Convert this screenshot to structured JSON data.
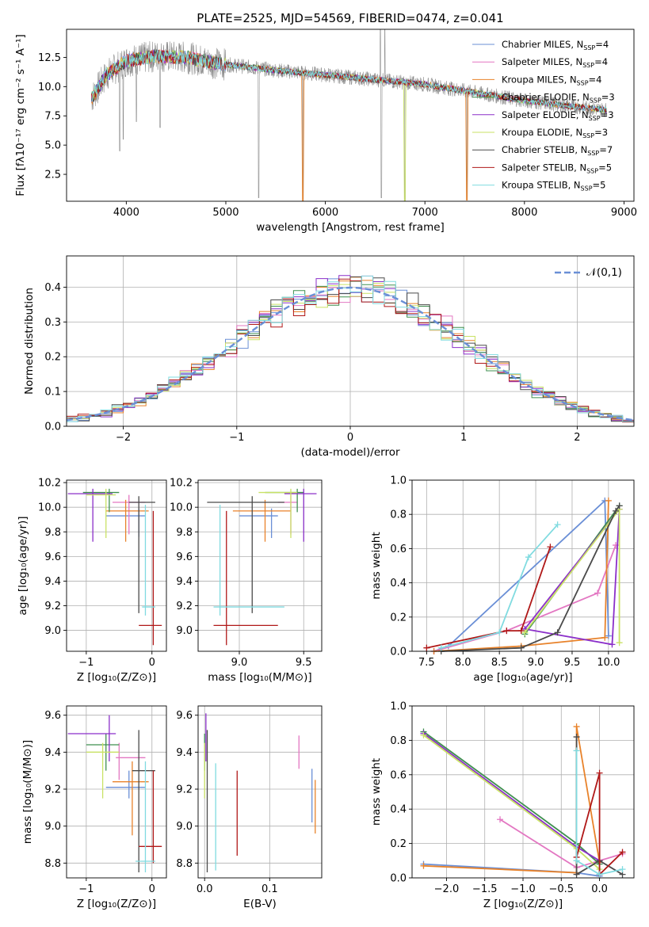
{
  "colors": {
    "Chabrier MILES": "#6a8fd6",
    "Salpeter MILES": "#e377c2",
    "Kroupa MILES": "#e8822a",
    "Chabrier ELODIE": "#3f8f4f",
    "Salpeter ELODIE": "#8b2fc9",
    "Kroupa ELODIE": "#c9e265",
    "Chabrier STELIB": "#4a4a4a",
    "Salpeter STELIB": "#b01818",
    "Kroupa STELIB": "#80dbe0",
    "data": "#8c8c8c",
    "normal": "#6a8fd6"
  },
  "chart_data": [
    {
      "type": "line",
      "panel": "spectrum",
      "title": "PLATE=2525, MJD=54569, FIBERID=0474, z=0.041",
      "xlabel": "wavelength [Angstrom, rest frame]",
      "ylabel": "Flux [fλ10⁻¹⁷ erg cm⁻² s⁻¹ A⁻¹]",
      "xlim": [
        3400,
        9100
      ],
      "ylim": [
        0.2,
        14.9
      ],
      "xticks": [
        "4000",
        "5000",
        "6000",
        "7000",
        "8000",
        "9000"
      ],
      "yticks": [
        "2.5",
        "5.0",
        "7.5",
        "10.0",
        "12.5"
      ],
      "legend_position": "top-right",
      "legend": [
        {
          "name": "Chabrier MILES",
          "nssp": "4"
        },
        {
          "name": "Salpeter MILES",
          "nssp": "4"
        },
        {
          "name": "Kroupa MILES",
          "nssp": "4"
        },
        {
          "name": "Chabrier ELODIE",
          "nssp": "3"
        },
        {
          "name": "Salpeter ELODIE",
          "nssp": "3"
        },
        {
          "name": "Kroupa ELODIE",
          "nssp": "3"
        },
        {
          "name": "Chabrier STELIB",
          "nssp": "7"
        },
        {
          "name": "Salpeter STELIB",
          "nssp": "5"
        },
        {
          "name": "Kroupa STELIB",
          "nssp": "5"
        }
      ],
      "continuum": [
        [
          3650,
          9.0
        ],
        [
          3800,
          11.0
        ],
        [
          4000,
          12.2
        ],
        [
          4300,
          12.6
        ],
        [
          4600,
          12.5
        ],
        [
          4900,
          12.0
        ],
        [
          5500,
          11.4
        ],
        [
          6000,
          11.0
        ],
        [
          6500,
          10.6
        ],
        [
          7000,
          10.2
        ],
        [
          7500,
          9.5
        ],
        [
          8000,
          8.8
        ],
        [
          8500,
          8.3
        ],
        [
          8830,
          8.0
        ]
      ],
      "absorption": [
        {
          "x": 3935,
          "y": 4.5
        },
        {
          "x": 3970,
          "y": 5.5
        },
        {
          "x": 4102,
          "y": 7.0
        },
        {
          "x": 4340,
          "y": 6.5
        },
        {
          "x": 5330,
          "y": 0.5
        },
        {
          "x": 5775,
          "y": 0.2
        },
        {
          "x": 6563,
          "y": 0.5
        },
        {
          "x": 6800,
          "y": 0.2
        },
        {
          "x": 7420,
          "y": 0.3
        }
      ],
      "emission": [
        {
          "x": 6553,
          "y": 14.9
        },
        {
          "x": 6598,
          "y": 14.9
        }
      ]
    },
    {
      "type": "bar",
      "panel": "residual histogram",
      "xlabel": "(data-model)/error",
      "ylabel": "Normed distribution",
      "xlim": [
        -2.5,
        2.5
      ],
      "ylim": [
        0,
        0.49
      ],
      "xticks": [
        "−2",
        "−1",
        "0",
        "1",
        "2"
      ],
      "yticks": [
        "0.0",
        "0.1",
        "0.2",
        "0.3",
        "0.4"
      ],
      "grid": true,
      "legend_position": "top-right",
      "series": [
        {
          "name": "𝒩(0,1)",
          "type": "line",
          "mean": 0,
          "sigma": 1
        }
      ],
      "bin_width": 0.1
    },
    {
      "type": "scatter",
      "panel": "age vs Z",
      "xlabel": "Z [log₁₀(Z/Z⊙)]",
      "ylabel": "age  [log₁₀(age/yr)]",
      "xlim": [
        -1.3,
        0.22
      ],
      "ylim": [
        8.83,
        10.22
      ],
      "xticks": [
        "−1",
        "0"
      ],
      "yticks": [
        "9.0",
        "9.2",
        "9.4",
        "9.6",
        "9.8",
        "10.0",
        "10.2"
      ],
      "grid": true,
      "points": [
        {
          "model": "Chabrier MILES",
          "x": -0.2,
          "xlo": -0.7,
          "xhi": -0.1,
          "y": 9.93,
          "ylo": 9.76,
          "yhi": 9.99
        },
        {
          "model": "Salpeter MILES",
          "x": -0.35,
          "xlo": -0.6,
          "xhi": -0.1,
          "y": 10.04,
          "ylo": 9.78,
          "yhi": 10.1
        },
        {
          "model": "Kroupa MILES",
          "x": -0.4,
          "xlo": -0.7,
          "xhi": -0.05,
          "y": 9.97,
          "ylo": 9.72,
          "yhi": 10.06
        },
        {
          "model": "Chabrier ELODIE",
          "x": -0.65,
          "xlo": -1.05,
          "xhi": -0.5,
          "y": 10.12,
          "ylo": 9.96,
          "yhi": 10.15
        },
        {
          "model": "Salpeter ELODIE",
          "x": -0.9,
          "xlo": -1.28,
          "xhi": -0.6,
          "y": 10.11,
          "ylo": 9.72,
          "yhi": 10.15
        },
        {
          "model": "Kroupa ELODIE",
          "x": -0.7,
          "xlo": -1.0,
          "xhi": -0.55,
          "y": 10.1,
          "ylo": 9.75,
          "yhi": 10.15
        },
        {
          "model": "Chabrier STELIB",
          "x": -0.2,
          "xlo": -0.35,
          "xhi": 0.05,
          "y": 10.04,
          "ylo": 9.14,
          "yhi": 10.09
        },
        {
          "model": "Salpeter STELIB",
          "x": 0.02,
          "xlo": -0.2,
          "xhi": 0.15,
          "y": 9.04,
          "ylo": 8.88,
          "yhi": 9.97
        },
        {
          "model": "Kroupa STELIB",
          "x": -0.1,
          "xlo": -0.15,
          "xhi": 0.05,
          "y": 9.19,
          "ylo": 9.12,
          "yhi": 10.02
        }
      ]
    },
    {
      "type": "scatter",
      "panel": "age vs mass",
      "xlabel": "mass [log₁₀(M/M⊙)]",
      "ylabel": "",
      "xlim": [
        8.68,
        9.64
      ],
      "ylim": [
        8.83,
        10.22
      ],
      "xticks": [
        "9.0",
        "9.5"
      ],
      "yticks": [
        "9.0",
        "9.2",
        "9.4",
        "9.6",
        "9.8",
        "10.0",
        "10.2"
      ],
      "grid": true,
      "points": [
        {
          "model": "Chabrier MILES",
          "x": 9.25,
          "xlo": 9.0,
          "xhi": 9.3,
          "y": 9.93,
          "ylo": 9.75,
          "yhi": 9.99
        },
        {
          "model": "Salpeter MILES",
          "x": 9.4,
          "xlo": 9.3,
          "xhi": 9.45,
          "y": 10.04,
          "ylo": 9.78,
          "yhi": 10.1
        },
        {
          "model": "Kroupa MILES",
          "x": 9.2,
          "xlo": 8.95,
          "xhi": 9.4,
          "y": 9.97,
          "ylo": 9.72,
          "yhi": 10.06
        },
        {
          "model": "Chabrier ELODIE",
          "x": 9.45,
          "xlo": 9.2,
          "xhi": 9.5,
          "y": 10.12,
          "ylo": 9.96,
          "yhi": 10.15
        },
        {
          "model": "Salpeter ELODIE",
          "x": 9.5,
          "xlo": 9.35,
          "xhi": 9.6,
          "y": 10.11,
          "ylo": 9.72,
          "yhi": 10.15
        },
        {
          "model": "Kroupa ELODIE",
          "x": 9.4,
          "xlo": 9.15,
          "xhi": 9.45,
          "y": 10.12,
          "ylo": 9.75,
          "yhi": 10.15
        },
        {
          "model": "Chabrier STELIB",
          "x": 9.1,
          "xlo": 8.75,
          "xhi": 9.35,
          "y": 10.04,
          "ylo": 9.14,
          "yhi": 10.09
        },
        {
          "model": "Salpeter STELIB",
          "x": 8.9,
          "xlo": 8.8,
          "xhi": 9.3,
          "y": 9.04,
          "ylo": 8.88,
          "yhi": 9.97
        },
        {
          "model": "Kroupa STELIB",
          "x": 8.85,
          "xlo": 8.8,
          "xhi": 9.35,
          "y": 9.19,
          "ylo": 9.12,
          "yhi": 10.02
        }
      ]
    },
    {
      "type": "line",
      "panel": "mass weight vs age",
      "xlabel": "age  [log₁₀(age/yr)]",
      "ylabel": "mass weight",
      "xlim": [
        7.3,
        10.35
      ],
      "ylim": [
        0,
        1.0
      ],
      "xticks": [
        "7.5",
        "8.0",
        "8.5",
        "9.0",
        "9.5",
        "10.0"
      ],
      "yticks": [
        "0.0",
        "0.2",
        "0.4",
        "0.6",
        "0.8",
        "1.0"
      ],
      "grid": true,
      "series": [
        {
          "name": "Chabrier MILES",
          "points": [
            [
              7.6,
              0.0
            ],
            [
              7.8,
              0.03
            ],
            [
              9.95,
              0.88
            ],
            [
              10.0,
              0.09
            ]
          ]
        },
        {
          "name": "Salpeter MILES",
          "points": [
            [
              7.6,
              0.0
            ],
            [
              8.6,
              0.12
            ],
            [
              9.85,
              0.34
            ],
            [
              10.1,
              0.62
            ]
          ]
        },
        {
          "name": "Kroupa MILES",
          "points": [
            [
              7.6,
              0.0
            ],
            [
              8.8,
              0.03
            ],
            [
              9.95,
              0.08
            ],
            [
              10.0,
              0.88
            ]
          ]
        },
        {
          "name": "Chabrier ELODIE",
          "points": [
            [
              8.85,
              0.1
            ],
            [
              10.15,
              0.85
            ]
          ]
        },
        {
          "name": "Salpeter ELODIE",
          "points": [
            [
              8.85,
              0.13
            ],
            [
              10.15,
              0.83
            ],
            [
              10.05,
              0.04
            ],
            [
              8.85,
              0.13
            ]
          ]
        },
        {
          "name": "Kroupa ELODIE",
          "points": [
            [
              8.85,
              0.11
            ],
            [
              10.15,
              0.83
            ],
            [
              10.15,
              0.05
            ]
          ]
        },
        {
          "name": "Chabrier STELIB",
          "points": [
            [
              7.7,
              0.0
            ],
            [
              8.8,
              0.02
            ],
            [
              9.3,
              0.11
            ],
            [
              10.1,
              0.82
            ],
            [
              10.15,
              0.85
            ]
          ]
        },
        {
          "name": "Salpeter STELIB",
          "points": [
            [
              7.5,
              0.02
            ],
            [
              8.6,
              0.12
            ],
            [
              8.8,
              0.12
            ],
            [
              9.2,
              0.61
            ]
          ]
        },
        {
          "name": "Kroupa STELIB",
          "points": [
            [
              7.7,
              0.02
            ],
            [
              8.5,
              0.11
            ],
            [
              8.9,
              0.55
            ],
            [
              9.3,
              0.74
            ]
          ]
        }
      ]
    },
    {
      "type": "scatter",
      "panel": "mass vs Z",
      "xlabel": "Z [log₁₀(Z/Z⊙)]",
      "ylabel": "mass [log₁₀(M/M⊙)]",
      "xlim": [
        -1.3,
        0.22
      ],
      "ylim": [
        8.72,
        9.65
      ],
      "xticks": [
        "−1",
        "0"
      ],
      "yticks": [
        "8.8",
        "9.0",
        "9.2",
        "9.4",
        "9.6"
      ],
      "grid": true,
      "points": [
        {
          "model": "Chabrier MILES",
          "x": -0.35,
          "xlo": -0.7,
          "xhi": -0.1,
          "y": 9.21,
          "ylo": 9.15,
          "yhi": 9.3
        },
        {
          "model": "Salpeter MILES",
          "x": -0.5,
          "xlo": -0.55,
          "xhi": -0.1,
          "y": 9.37,
          "ylo": 9.25,
          "yhi": 9.45
        },
        {
          "model": "Kroupa MILES",
          "x": -0.3,
          "xlo": -0.6,
          "xhi": -0.05,
          "y": 9.24,
          "ylo": 8.95,
          "yhi": 9.35
        },
        {
          "model": "Chabrier ELODIE",
          "x": -0.7,
          "xlo": -1.0,
          "xhi": -0.5,
          "y": 9.44,
          "ylo": 9.3,
          "yhi": 9.5
        },
        {
          "model": "Salpeter ELODIE",
          "x": -0.65,
          "xlo": -1.28,
          "xhi": -0.55,
          "y": 9.5,
          "ylo": 9.35,
          "yhi": 9.6
        },
        {
          "model": "Kroupa ELODIE",
          "x": -0.75,
          "xlo": -1.0,
          "xhi": -0.5,
          "y": 9.4,
          "ylo": 9.15,
          "yhi": 9.45
        },
        {
          "model": "Chabrier STELIB",
          "x": -0.2,
          "xlo": -0.3,
          "xhi": 0.05,
          "y": 9.3,
          "ylo": 8.75,
          "yhi": 9.52
        },
        {
          "model": "Salpeter STELIB",
          "x": 0.02,
          "xlo": -0.2,
          "xhi": 0.15,
          "y": 8.89,
          "ylo": 8.8,
          "yhi": 9.3
        },
        {
          "model": "Kroupa STELIB",
          "x": -0.1,
          "xlo": -0.25,
          "xhi": 0.05,
          "y": 8.81,
          "ylo": 8.75,
          "yhi": 9.35
        }
      ]
    },
    {
      "type": "scatter",
      "panel": "mass vs E(B-V)",
      "xlabel": "E(B-V)",
      "ylabel": "",
      "xlim": [
        -0.01,
        0.18
      ],
      "ylim": [
        8.72,
        9.65
      ],
      "xticks": [
        "0.0",
        "0.1"
      ],
      "yticks": [
        "8.8",
        "9.0",
        "9.2",
        "9.4",
        "9.6"
      ],
      "grid": true,
      "points": [
        {
          "model": "Chabrier MILES",
          "x": 0.165,
          "ylo": 9.02,
          "yhi": 9.31
        },
        {
          "model": "Salpeter MILES",
          "x": 0.145,
          "ylo": 9.31,
          "yhi": 9.49
        },
        {
          "model": "Kroupa MILES",
          "x": 0.17,
          "ylo": 8.96,
          "yhi": 9.25
        },
        {
          "model": "Chabrier ELODIE",
          "x": 0.0,
          "ylo": 9.3,
          "yhi": 9.5
        },
        {
          "model": "Salpeter ELODIE",
          "x": 0.002,
          "ylo": 9.35,
          "yhi": 9.61
        },
        {
          "model": "Kroupa ELODIE",
          "x": 0.0,
          "ylo": 9.15,
          "yhi": 9.45
        },
        {
          "model": "Chabrier STELIB",
          "x": 0.004,
          "ylo": 8.75,
          "yhi": 9.52
        },
        {
          "model": "Salpeter STELIB",
          "x": 0.05,
          "ylo": 8.84,
          "yhi": 9.3
        },
        {
          "model": "Kroupa STELIB",
          "x": 0.017,
          "ylo": 8.76,
          "yhi": 9.34
        }
      ]
    },
    {
      "type": "line",
      "panel": "mass weight vs Z",
      "xlabel": "Z [log₁₀(Z/Z⊙)]",
      "ylabel": "mass weight",
      "xlim": [
        -2.45,
        0.45
      ],
      "ylim": [
        0,
        1.0
      ],
      "xticks": [
        "−2.0",
        "−1.5",
        "−1.0",
        "−0.5",
        "0.0"
      ],
      "yticks": [
        "0.0",
        "0.2",
        "0.4",
        "0.6",
        "0.8",
        "1.0"
      ],
      "grid": true,
      "series": [
        {
          "name": "Chabrier MILES",
          "points": [
            [
              -2.3,
              0.08
            ],
            [
              -0.3,
              0.03
            ],
            [
              0.0,
              0.01
            ],
            [
              0.0,
              0.09
            ]
          ]
        },
        {
          "name": "Salpeter MILES",
          "points": [
            [
              -1.3,
              0.34
            ],
            [
              -0.3,
              0.06
            ],
            [
              0.0,
              0.1
            ],
            [
              0.3,
              0.14
            ]
          ]
        },
        {
          "name": "Kroupa MILES",
          "points": [
            [
              -2.3,
              0.07
            ],
            [
              -0.3,
              0.03
            ],
            [
              -0.3,
              0.88
            ],
            [
              0.0,
              0.09
            ]
          ]
        },
        {
          "name": "Chabrier ELODIE",
          "points": [
            [
              -2.3,
              0.85
            ],
            [
              -0.3,
              0.2
            ],
            [
              0.0,
              0.08
            ]
          ]
        },
        {
          "name": "Salpeter ELODIE",
          "points": [
            [
              -2.3,
              0.84
            ],
            [
              -0.3,
              0.18
            ],
            [
              0.0,
              0.1
            ]
          ]
        },
        {
          "name": "Kroupa ELODIE",
          "points": [
            [
              -2.3,
              0.83
            ],
            [
              -0.3,
              0.17
            ],
            [
              0.0,
              0.05
            ]
          ]
        },
        {
          "name": "Chabrier STELIB",
          "points": [
            [
              -0.3,
              0.82
            ],
            [
              -0.3,
              0.02
            ],
            [
              0.0,
              0.1
            ],
            [
              0.3,
              0.02
            ]
          ]
        },
        {
          "name": "Salpeter STELIB",
          "points": [
            [
              -0.3,
              0.12
            ],
            [
              0.0,
              0.61
            ],
            [
              0.0,
              0.02
            ],
            [
              0.3,
              0.15
            ]
          ]
        },
        {
          "name": "Kroupa STELIB",
          "points": [
            [
              -0.3,
              0.74
            ],
            [
              -0.3,
              0.1
            ],
            [
              0.0,
              0.02
            ],
            [
              0.3,
              0.05
            ]
          ]
        }
      ]
    }
  ]
}
